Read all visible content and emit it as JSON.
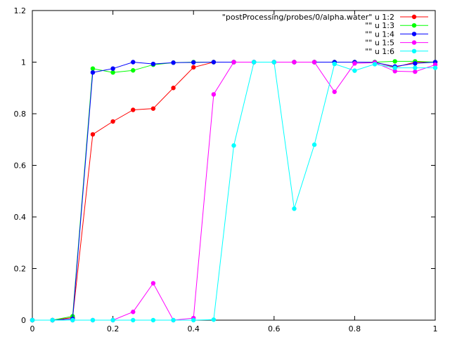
{
  "chart_data": {
    "type": "line",
    "title": "",
    "xlabel": "",
    "ylabel": "",
    "xlim": [
      0,
      1
    ],
    "ylim": [
      0,
      1.2
    ],
    "xticks": [
      "0",
      "0.2",
      "0.4",
      "0.6",
      "0.8",
      "1"
    ],
    "yticks": [
      "0",
      "0.2",
      "0.4",
      "0.6",
      "0.8",
      "1",
      "1.2"
    ],
    "grid": false,
    "legend_position": "top-right",
    "x": [
      0,
      0.05,
      0.1,
      0.15,
      0.2,
      0.25,
      0.3,
      0.35,
      0.4,
      0.45,
      0.5,
      0.55,
      0.6,
      0.65,
      0.7,
      0.75,
      0.8,
      0.85,
      0.9,
      0.95,
      1.0
    ],
    "series": [
      {
        "name": "\"postProcessing/probes/0/alpha.water\" u 1:2",
        "color": "#ff0000",
        "values": [
          0,
          0,
          0.01,
          0.72,
          0.77,
          0.815,
          0.82,
          0.9,
          0.98,
          1.0,
          1.0,
          1.0,
          1.0,
          1.0,
          1.0,
          1.0,
          1.0,
          1.0,
          0.98,
          1.0,
          1.0
        ]
      },
      {
        "name": "\"\" u 1:3",
        "color": "#00ff00",
        "values": [
          0,
          0,
          0.015,
          0.975,
          0.96,
          0.968,
          0.99,
          0.998,
          1.0,
          1.0,
          1.0,
          1.0,
          1.0,
          1.0,
          1.0,
          1.0,
          1.0,
          1.0,
          1.003,
          1.003,
          1.0
        ]
      },
      {
        "name": "\"\" u 1:4",
        "color": "#0000ff",
        "values": [
          0,
          0,
          0.005,
          0.96,
          0.975,
          1.0,
          0.993,
          0.998,
          0.999,
          1.0,
          1.0,
          1.0,
          1.0,
          1.0,
          1.0,
          1.0,
          1.0,
          0.999,
          0.983,
          0.995,
          1.0
        ]
      },
      {
        "name": "\"\" u 1:5",
        "color": "#ff00ff",
        "values": [
          0,
          0,
          0,
          0,
          0,
          0.032,
          0.143,
          0,
          0.008,
          0.875,
          1.0,
          1.0,
          1.0,
          1.0,
          1.0,
          0.885,
          0.995,
          0.998,
          0.965,
          0.963,
          0.99
        ]
      },
      {
        "name": "\"\" u 1:6",
        "color": "#00ffff",
        "values": [
          0,
          0,
          0,
          0,
          0,
          0,
          0,
          0,
          0,
          0.002,
          0.677,
          1.0,
          1.0,
          0.432,
          0.68,
          0.993,
          0.967,
          0.992,
          0.978,
          0.978,
          0.978
        ]
      }
    ]
  }
}
